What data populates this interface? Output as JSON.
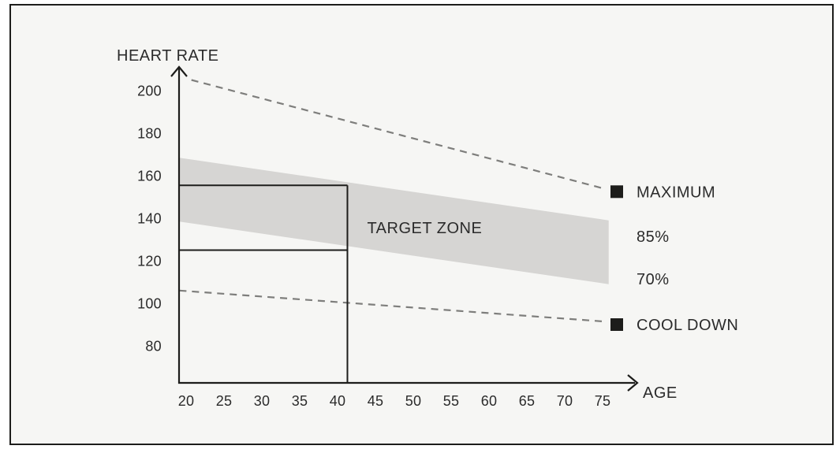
{
  "colors": {
    "background": "#f6f6f4",
    "frame_border": "#1d1d1b",
    "axis": "#1d1d1b",
    "band": "#d6d5d3",
    "dashed_line": "#7e7e7c",
    "marker": "#1d1d1b",
    "text": "#2b2b2b"
  },
  "chart_data": {
    "type": "area",
    "title": "",
    "xlabel": "AGE",
    "ylabel": "HEART RATE",
    "x_ticks": [
      20,
      25,
      30,
      35,
      40,
      45,
      50,
      55,
      60,
      65,
      70,
      75
    ],
    "y_ticks": [
      80,
      100,
      120,
      140,
      160,
      180,
      200
    ],
    "xlim": [
      19,
      80
    ],
    "ylim": [
      70,
      212
    ],
    "grid": false,
    "legend_position": "right",
    "band": {
      "label": "TARGET ZONE",
      "upper_bound_label": "85%",
      "lower_bound_label": "70%",
      "age": [
        19,
        75.8
      ],
      "top_hr": [
        168.5,
        139
      ],
      "bottom_hr": [
        138.5,
        109
      ]
    },
    "series": [
      {
        "name": "MAXIMUM",
        "style": "dashed",
        "age": [
          20.7,
          75.1
        ],
        "hr": [
          205,
          154
        ]
      },
      {
        "name": "COOL DOWN",
        "style": "dashed",
        "age": [
          19.1,
          75.1
        ],
        "hr": [
          106,
          91.5
        ]
      }
    ],
    "right_labels": [
      {
        "text": "MAXIMUM",
        "hr": 152.5,
        "marker": true
      },
      {
        "text": "85%",
        "hr": 131.5,
        "marker": false
      },
      {
        "text": "70%",
        "hr": 111.5,
        "marker": false
      },
      {
        "text": "COOL DOWN",
        "hr": 90,
        "marker": true
      }
    ],
    "annotation": {
      "text": "TARGET ZONE",
      "age": 51.5,
      "hr": 135.5
    },
    "highlight": {
      "age": 41.3,
      "hr_range": [
        125,
        155.5
      ]
    }
  }
}
